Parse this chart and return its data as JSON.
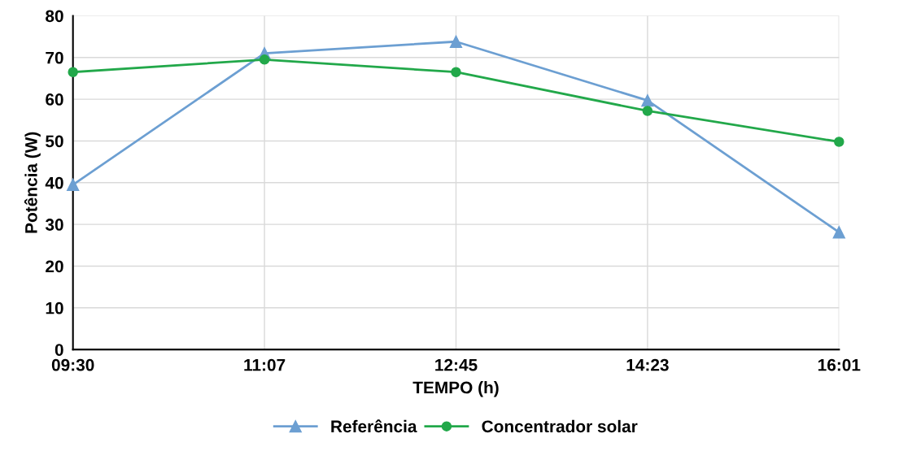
{
  "chart_data": {
    "type": "line",
    "xlabel": "TEMPO (h)",
    "ylabel": "Potência (W)",
    "categories": [
      "09:30",
      "11:07",
      "12:45",
      "14:23",
      "16:01"
    ],
    "series": [
      {
        "name": "Referência",
        "color": "#6c9fd2",
        "marker": "triangle",
        "values": [
          39.5,
          71,
          73.8,
          59.7,
          28.1
        ]
      },
      {
        "name": "Concentrador solar",
        "color": "#22a84a",
        "marker": "circle",
        "values": [
          66.5,
          69.5,
          66.5,
          57.2,
          49.8
        ]
      }
    ],
    "ylim": [
      0,
      80
    ],
    "yticks": [
      0,
      10,
      20,
      30,
      40,
      50,
      60,
      70,
      80
    ],
    "grid": true,
    "legend": "bottom",
    "line_style": "solid"
  }
}
